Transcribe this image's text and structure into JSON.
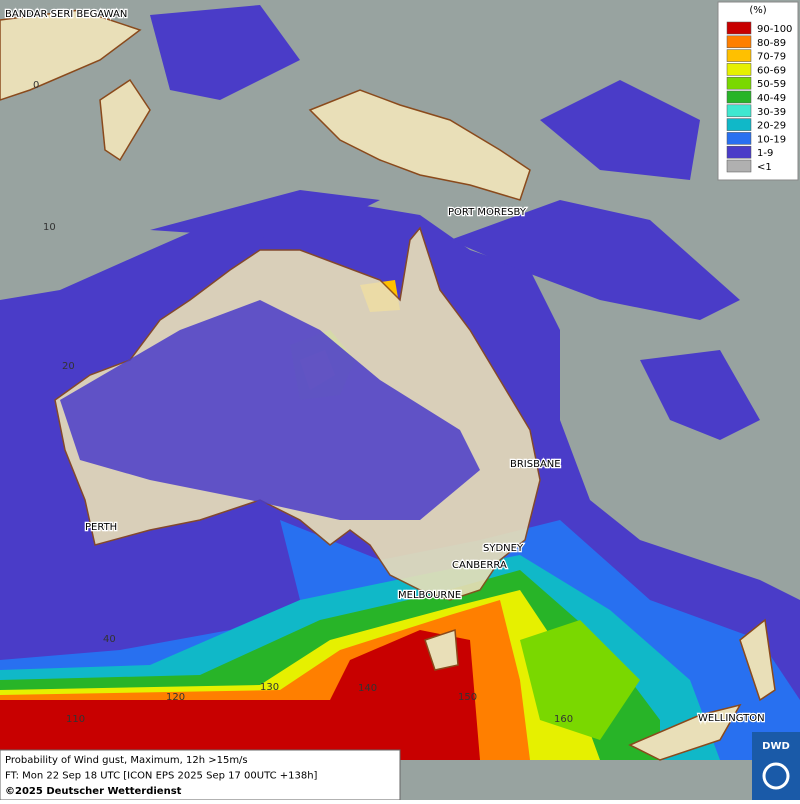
{
  "map": {
    "legend": {
      "title": "(%)",
      "items": [
        {
          "label": "90-100",
          "color": "#c80000"
        },
        {
          "label": "80-89",
          "color": "#ff7f00"
        },
        {
          "label": "70-79",
          "color": "#ffc000"
        },
        {
          "label": "60-69",
          "color": "#e6f000"
        },
        {
          "label": "50-59",
          "color": "#7ad800"
        },
        {
          "label": "40-49",
          "color": "#28b428"
        },
        {
          "label": "30-39",
          "color": "#40e8d0"
        },
        {
          "label": "20-29",
          "color": "#10b8c8"
        },
        {
          "label": "10-19",
          "color": "#2870f0"
        },
        {
          "label": "1-9",
          "color": "#4a3cc8"
        },
        {
          "label": "<1",
          "color": "#b0b0b0"
        }
      ]
    },
    "places": [
      "BANDAR SERI BEGAWAN",
      "PORT MORESBY",
      "BRISBANE",
      "PERTH",
      "SYDNEY",
      "CANBERRA",
      "MELBOURNE",
      "WELLINGTON"
    ],
    "latitudes": [
      "0",
      "10",
      "20",
      "40"
    ],
    "longitudes": [
      "110",
      "120",
      "130",
      "140",
      "150",
      "160"
    ],
    "caption": [
      "Probability of Wind gust, Maximum, 12h >15m/s",
      "FT: Mon 22 Sep 18 UTC [ICON EPS 2025 Sep 17 00UTC +138h]",
      "©2025 Deutscher Wetterdienst"
    ],
    "logo": "DWD"
  }
}
